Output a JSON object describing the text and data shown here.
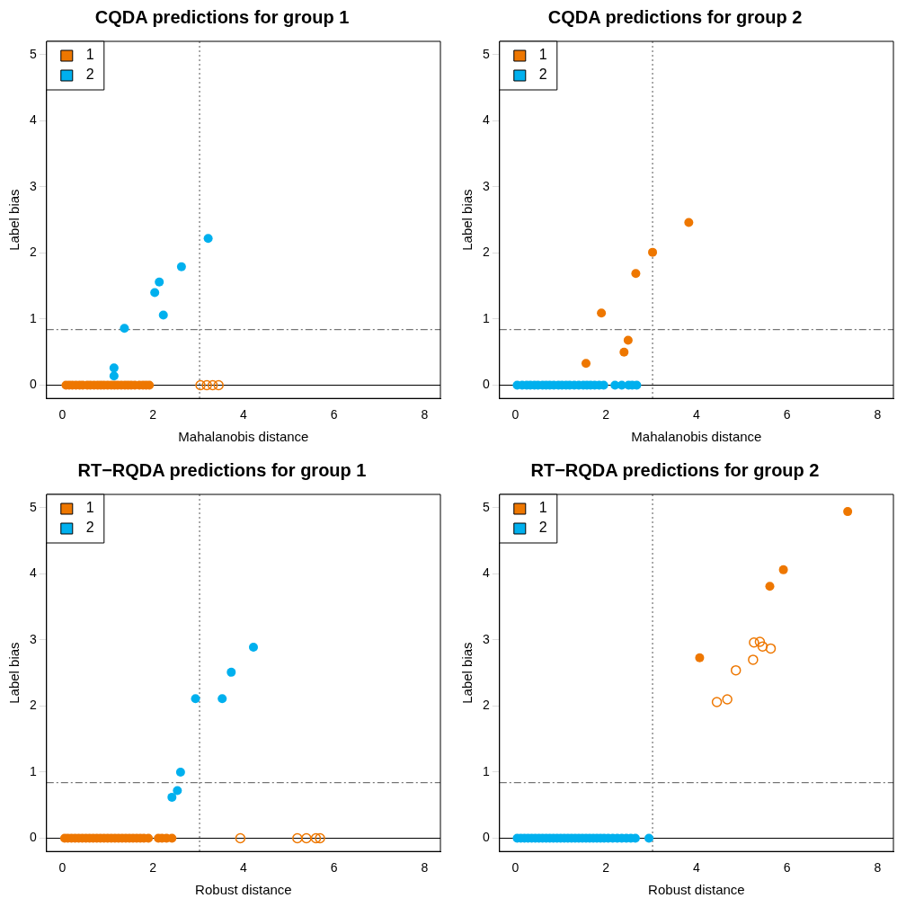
{
  "chart_data": [
    {
      "type": "scatter",
      "title": "CQDA predictions for group 1",
      "xlabel": "Mahalanobis distance",
      "ylabel": "Label bias",
      "xlim": [
        -0.35,
        8.35
      ],
      "xticks": [
        0,
        2,
        4,
        6,
        8
      ],
      "ylim": [
        -0.2,
        5.2
      ],
      "yticks": [
        0,
        1,
        2,
        3,
        4,
        5
      ],
      "grid": false,
      "legend": "top left",
      "marker": "circle",
      "ref_lines": [
        {
          "axis": "x",
          "value": 3.03,
          "color": "#555555",
          "line_style": "dotted"
        },
        {
          "axis": "y",
          "value": 0.84,
          "color": "#555555",
          "line_style": "dashed"
        },
        {
          "axis": "y",
          "value": 0,
          "color": "#000000",
          "line_style": "solid"
        }
      ],
      "series": [
        {
          "name": "1",
          "color": "#ee7700",
          "x": [
            0.08,
            0.15,
            0.22,
            0.3,
            0.38,
            0.45,
            0.55,
            0.62,
            0.7,
            0.78,
            0.85,
            0.92,
            1.0,
            1.08,
            1.15,
            1.22,
            1.3,
            1.38,
            1.45,
            1.52,
            1.6,
            1.7,
            1.78,
            1.85,
            1.92
          ],
          "values": [
            0,
            0,
            0,
            0,
            0,
            0,
            0,
            0,
            0,
            0,
            0,
            0,
            0,
            0,
            0,
            0,
            0,
            0,
            0,
            0,
            0,
            0,
            0,
            0,
            0
          ]
        },
        {
          "color": "#ee7700",
          "x": [
            3.05,
            3.19,
            3.32,
            3.45
          ],
          "values": [
            0,
            0,
            0,
            0
          ]
        },
        {
          "name": "2",
          "color": "#00b0ee",
          "x": [
            3.22,
            2.63,
            2.14,
            2.04,
            2.23,
            1.37,
            1.14,
            1.14
          ],
          "values": [
            2.22,
            1.79,
            1.56,
            1.4,
            1.06,
            0.86,
            0.26,
            0.14
          ]
        }
      ]
    },
    {
      "type": "scatter",
      "title": "CQDA predictions for group 2",
      "xlabel": "Mahalanobis distance",
      "ylabel": "Label bias",
      "xlim": [
        -0.35,
        8.35
      ],
      "xticks": [
        0,
        2,
        4,
        6,
        8
      ],
      "ylim": [
        -0.2,
        5.2
      ],
      "yticks": [
        0,
        1,
        2,
        3,
        4,
        5
      ],
      "grid": false,
      "legend": "top left",
      "marker": "circle",
      "ref_lines": [
        {
          "axis": "x",
          "value": 3.03,
          "color": "#555555",
          "line_style": "dotted"
        },
        {
          "axis": "y",
          "value": 0.84,
          "color": "#555555",
          "line_style": "dashed"
        },
        {
          "axis": "y",
          "value": 0,
          "color": "#000000",
          "line_style": "solid"
        }
      ],
      "series": [
        {
          "name": "1",
          "color": "#ee7700",
          "x": [
            3.83,
            3.03,
            2.66,
            1.9,
            2.49,
            2.4,
            1.56
          ],
          "values": [
            2.46,
            2.01,
            1.69,
            1.09,
            0.68,
            0.5,
            0.33
          ]
        },
        {
          "name": "2",
          "color": "#00b0ee",
          "x": [
            0.04,
            0.15,
            0.25,
            0.33,
            0.42,
            0.5,
            0.6,
            0.68,
            0.76,
            0.85,
            0.95,
            1.03,
            1.12,
            1.2,
            1.3,
            1.4,
            1.5,
            1.58,
            1.66,
            1.75,
            1.85,
            1.95,
            2.2,
            2.35,
            2.5,
            2.58,
            2.68
          ],
          "values": [
            0,
            0,
            0,
            0,
            0,
            0,
            0,
            0,
            0,
            0,
            0,
            0,
            0,
            0,
            0,
            0,
            0,
            0,
            0,
            0,
            0,
            0,
            0,
            0,
            0,
            0,
            0
          ]
        }
      ]
    },
    {
      "type": "scatter",
      "title": "RT−RQDA predictions for group 1",
      "xlabel": "Robust distance",
      "ylabel": "Label bias",
      "xlim": [
        -0.35,
        8.35
      ],
      "xticks": [
        0,
        2,
        4,
        6,
        8
      ],
      "ylim": [
        -0.2,
        5.2
      ],
      "yticks": [
        0,
        1,
        2,
        3,
        4,
        5
      ],
      "grid": false,
      "legend": "top left",
      "marker": "circle",
      "ref_lines": [
        {
          "axis": "x",
          "value": 3.03,
          "color": "#555555",
          "line_style": "dotted"
        },
        {
          "axis": "y",
          "value": 0.84,
          "color": "#555555",
          "line_style": "dashed"
        },
        {
          "axis": "y",
          "value": 0,
          "color": "#000000",
          "line_style": "solid"
        }
      ],
      "series": [
        {
          "name": "1",
          "color": "#ee7700",
          "x": [
            0.05,
            0.12,
            0.2,
            0.28,
            0.36,
            0.44,
            0.52,
            0.6,
            0.68,
            0.76,
            0.84,
            0.92,
            1.0,
            1.08,
            1.16,
            1.24,
            1.32,
            1.4,
            1.48,
            1.56,
            1.64,
            1.72,
            1.8,
            1.9,
            2.12,
            2.2,
            2.3,
            2.42
          ],
          "values": [
            0,
            0,
            0,
            0,
            0,
            0,
            0,
            0,
            0,
            0,
            0,
            0,
            0,
            0,
            0,
            0,
            0,
            0,
            0,
            0,
            0,
            0,
            0,
            0,
            0,
            0,
            0,
            0
          ]
        },
        {
          "color": "#ee7700",
          "x": [
            3.93,
            5.19,
            5.39,
            5.6,
            5.69
          ],
          "values": [
            0,
            0,
            0,
            0,
            0
          ]
        },
        {
          "name": "2",
          "color": "#00b0ee",
          "x": [
            4.22,
            3.73,
            2.94,
            3.53,
            2.61,
            2.54,
            2.42
          ],
          "values": [
            2.89,
            2.51,
            2.11,
            2.11,
            1.0,
            0.72,
            0.62
          ]
        }
      ]
    },
    {
      "type": "scatter",
      "title": "RT−RQDA predictions for group 2",
      "xlabel": "Robust distance",
      "ylabel": "Label bias",
      "xlim": [
        -0.35,
        8.35
      ],
      "xticks": [
        0,
        2,
        4,
        6,
        8
      ],
      "ylim": [
        -0.2,
        5.2
      ],
      "yticks": [
        0,
        1,
        2,
        3,
        4,
        5
      ],
      "grid": false,
      "legend": "top left",
      "marker": "circle",
      "ref_lines": [
        {
          "axis": "x",
          "value": 3.03,
          "color": "#555555",
          "line_style": "dotted"
        },
        {
          "axis": "y",
          "value": 0.84,
          "color": "#555555",
          "line_style": "dashed"
        },
        {
          "axis": "y",
          "value": 0,
          "color": "#000000",
          "line_style": "solid"
        }
      ],
      "series": [
        {
          "name": "1",
          "color": "#ee7700",
          "x": [
            7.34,
            5.92,
            5.62,
            4.07
          ],
          "values": [
            4.94,
            4.06,
            3.81,
            2.73
          ]
        },
        {
          "color": "#ee7700",
          "x": [
            5.27,
            5.4,
            5.46,
            5.64,
            5.25,
            4.87,
            4.68,
            4.45
          ],
          "values": [
            2.96,
            2.97,
            2.9,
            2.87,
            2.7,
            2.54,
            2.1,
            2.06
          ]
        },
        {
          "name": "2",
          "color": "#00b0ee",
          "x": [
            0.04,
            0.12,
            0.2,
            0.28,
            0.36,
            0.44,
            0.52,
            0.6,
            0.68,
            0.76,
            0.84,
            0.92,
            1.0,
            1.08,
            1.16,
            1.24,
            1.32,
            1.4,
            1.48,
            1.56,
            1.64,
            1.72,
            1.8,
            1.88,
            1.96,
            2.05,
            2.15,
            2.25,
            2.35,
            2.45,
            2.55,
            2.65,
            2.95
          ],
          "values": [
            0,
            0,
            0,
            0,
            0,
            0,
            0,
            0,
            0,
            0,
            0,
            0,
            0,
            0,
            0,
            0,
            0,
            0,
            0,
            0,
            0,
            0,
            0,
            0,
            0,
            0,
            0,
            0,
            0,
            0,
            0,
            0,
            0
          ]
        }
      ]
    }
  ]
}
